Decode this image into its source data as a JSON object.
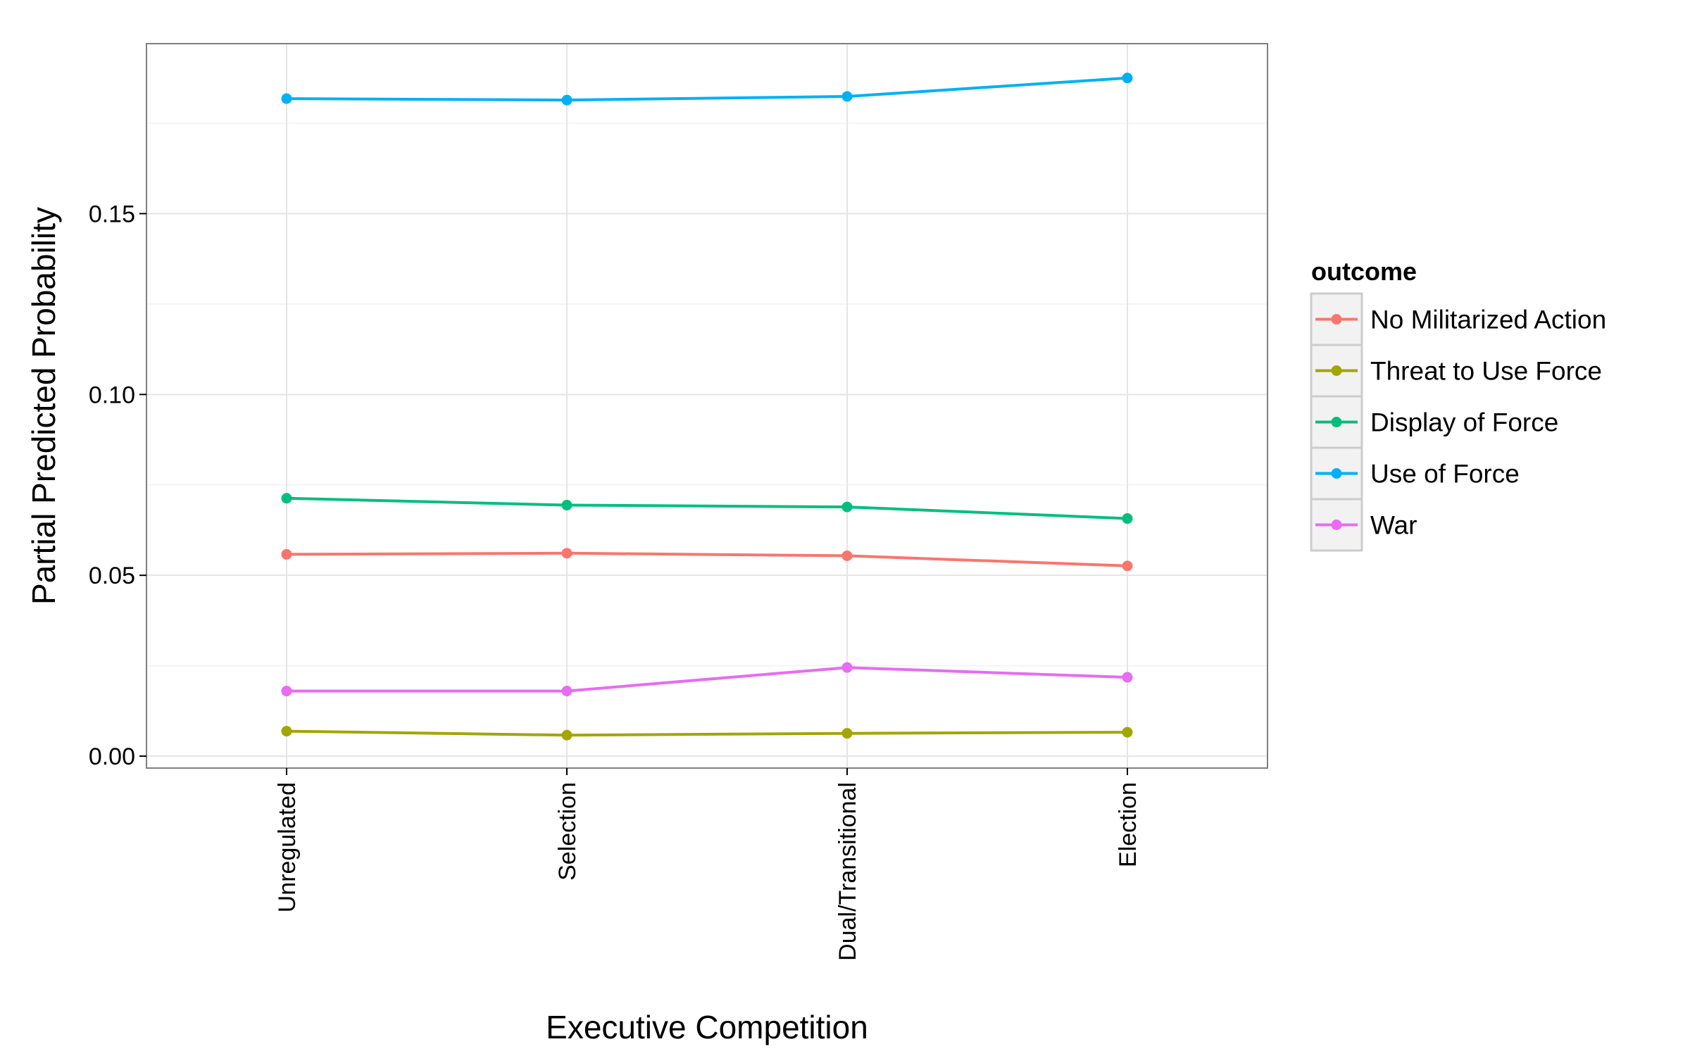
{
  "chart_data": {
    "type": "line",
    "xlabel": "Executive Competition",
    "ylabel": "Partial Predicted Probability",
    "categories": [
      "Unregulated",
      "Selection",
      "Dual/Transitional",
      "Election"
    ],
    "ylim": [
      -0.0033,
      0.197
    ],
    "y_ticks": [
      0.0,
      0.05,
      0.1,
      0.15
    ],
    "y_tick_labels": [
      "0.00",
      "0.05",
      "0.10",
      "0.15"
    ],
    "grid": true,
    "legend": {
      "title": "outcome",
      "placement": "right"
    },
    "series": [
      {
        "name": "No Militarized Action",
        "color": "#F8766D",
        "values": [
          0.0558,
          0.0561,
          0.0554,
          0.0526
        ]
      },
      {
        "name": "Threat to Use Force",
        "color": "#A3A500",
        "values": [
          0.0069,
          0.0058,
          0.0063,
          0.0066
        ]
      },
      {
        "name": "Display of Force",
        "color": "#00BF7D",
        "values": [
          0.0713,
          0.0694,
          0.0689,
          0.0657
        ]
      },
      {
        "name": "Use of Force",
        "color": "#00B0F6",
        "values": [
          0.1818,
          0.1814,
          0.1824,
          0.1875
        ]
      },
      {
        "name": "War",
        "color": "#E76BF3",
        "values": [
          0.018,
          0.018,
          0.0245,
          0.0218
        ]
      }
    ]
  }
}
